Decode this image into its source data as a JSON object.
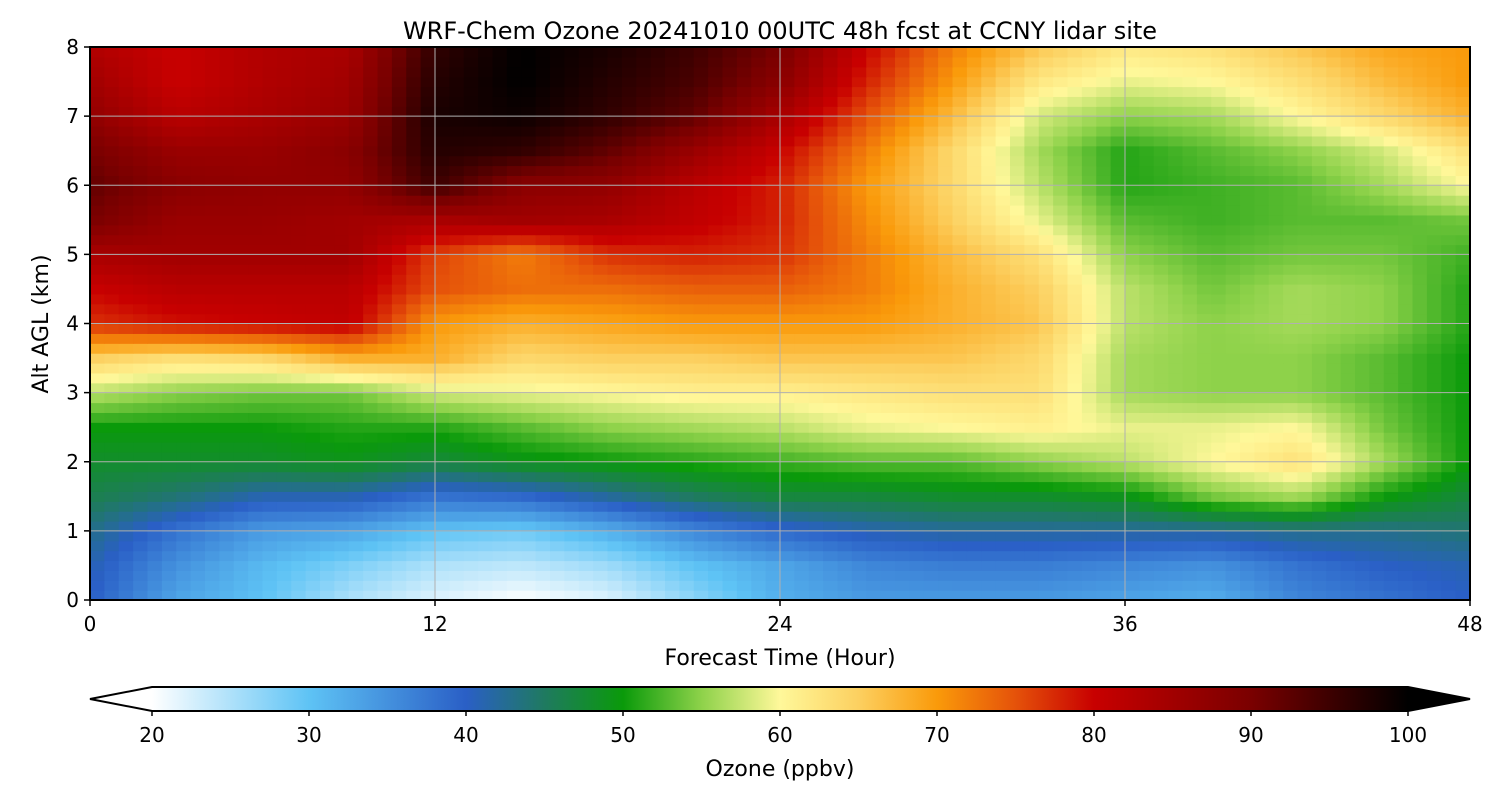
{
  "chart_data": {
    "type": "heatmap",
    "title": "WRF-Chem Ozone  20241010 00UTC 48h fcst at CCNY lidar site",
    "xlabel": "Forecast Time (Hour)",
    "ylabel": "Alt AGL (km)",
    "xlim": [
      0,
      48
    ],
    "ylim": [
      0,
      8
    ],
    "xticks": [
      0,
      12,
      24,
      36,
      48
    ],
    "yticks": [
      0,
      1,
      2,
      3,
      4,
      5,
      6,
      7,
      8
    ],
    "grid": true,
    "x": [
      0,
      3,
      6,
      9,
      12,
      15,
      18,
      21,
      24,
      27,
      30,
      33,
      36,
      39,
      42,
      45,
      48
    ],
    "y": [
      0,
      0.5,
      1,
      1.5,
      2,
      2.5,
      3,
      3.5,
      4,
      4.5,
      5,
      5.5,
      6,
      6.5,
      7,
      7.5,
      8
    ],
    "z": [
      [
        40,
        33,
        30,
        25,
        22,
        20,
        22,
        27,
        32,
        34,
        34,
        34,
        33,
        32,
        36,
        38,
        40
      ],
      [
        41,
        35,
        31,
        28,
        25,
        24,
        26,
        30,
        33,
        36,
        37,
        37,
        36,
        35,
        38,
        40,
        41
      ],
      [
        43,
        38,
        34,
        33,
        30,
        29,
        32,
        36,
        39,
        41,
        42,
        42,
        42,
        42,
        43,
        43,
        44
      ],
      [
        46,
        44,
        41,
        41,
        38,
        39,
        42,
        45,
        47,
        47,
        48,
        48,
        49,
        54,
        56,
        50,
        47
      ],
      [
        48,
        48,
        48,
        49,
        47,
        49,
        50,
        51,
        52,
        53,
        53,
        55,
        57,
        60,
        63,
        56,
        50
      ],
      [
        50,
        50,
        50,
        51,
        51,
        53,
        55,
        56,
        57,
        59,
        60,
        61,
        59,
        59,
        60,
        54,
        50
      ],
      [
        57,
        55,
        54,
        54,
        58,
        59,
        60,
        61,
        61,
        62,
        63,
        63,
        56,
        55,
        55,
        53,
        50
      ],
      [
        65,
        63,
        64,
        68,
        68,
        64,
        65,
        65,
        66,
        66,
        66,
        64,
        56,
        55,
        55,
        53,
        50
      ],
      [
        77,
        79,
        80,
        81,
        70,
        68,
        69,
        70,
        70,
        70,
        68,
        66,
        57,
        55,
        56,
        55,
        51
      ],
      [
        80,
        82,
        82,
        82,
        75,
        73,
        73,
        74,
        74,
        72,
        68,
        65,
        57,
        54,
        56,
        55,
        51
      ],
      [
        84,
        85,
        85,
        85,
        76,
        72,
        77,
        78,
        77,
        72,
        67,
        63,
        55,
        53,
        54,
        54,
        52
      ],
      [
        90,
        86,
        86,
        85,
        84,
        85,
        84,
        81,
        78,
        71,
        65,
        59,
        53,
        52,
        53,
        53,
        54
      ],
      [
        92,
        88,
        87,
        87,
        95,
        88,
        87,
        82,
        78,
        70,
        64,
        57,
        51,
        52,
        53,
        56,
        60
      ],
      [
        90,
        86,
        86,
        88,
        97,
        96,
        92,
        86,
        80,
        72,
        64,
        56,
        51,
        53,
        55,
        58,
        63
      ],
      [
        87,
        82,
        84,
        86,
        98,
        99,
        96,
        92,
        84,
        75,
        67,
        58,
        55,
        56,
        60,
        64,
        68
      ],
      [
        85,
        80,
        83,
        85,
        97,
        100,
        97,
        94,
        88,
        78,
        70,
        62,
        59,
        60,
        63,
        67,
        70
      ],
      [
        83,
        80,
        83,
        84,
        96,
        100,
        98,
        95,
        90,
        80,
        72,
        66,
        62,
        63,
        66,
        69,
        70
      ]
    ],
    "colorbar": {
      "label": "Ozone  (ppbv)",
      "min": 20,
      "max": 100,
      "extend": "both",
      "ticks": [
        20,
        30,
        40,
        50,
        60,
        70,
        80,
        90,
        100
      ],
      "stops": [
        {
          "v": 20,
          "c": "#ffffff"
        },
        {
          "v": 30,
          "c": "#5ec3f5"
        },
        {
          "v": 40,
          "c": "#2a5fc6"
        },
        {
          "v": 45,
          "c": "#1f7a60"
        },
        {
          "v": 50,
          "c": "#0a9a0a"
        },
        {
          "v": 55,
          "c": "#8ed24a"
        },
        {
          "v": 60,
          "c": "#fff89a"
        },
        {
          "v": 65,
          "c": "#fcd060"
        },
        {
          "v": 70,
          "c": "#fa9a0a"
        },
        {
          "v": 75,
          "c": "#e5520a"
        },
        {
          "v": 80,
          "c": "#c80000"
        },
        {
          "v": 90,
          "c": "#7a0000"
        },
        {
          "v": 100,
          "c": "#000000"
        }
      ]
    }
  }
}
